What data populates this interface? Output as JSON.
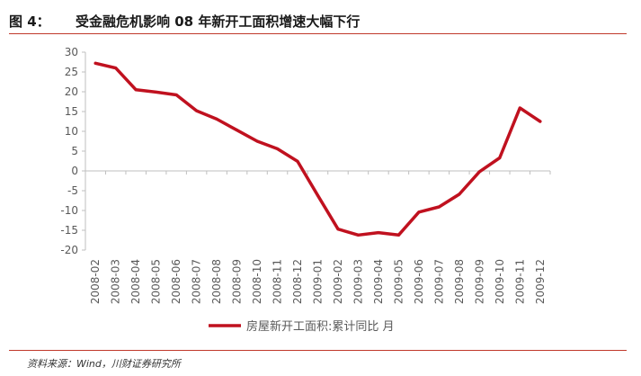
{
  "figure": {
    "label": "图 4：",
    "title": "受金融危机影响 08 年新开工面积增速大幅下行",
    "source": "资料来源：Wind，川财证券研究所"
  },
  "colors": {
    "series": "#c0111f",
    "axis": "#bfbfbf",
    "text": "#595959",
    "rule": "#c0392b"
  },
  "chart_data": {
    "type": "line",
    "categories": [
      "2008-02",
      "2008-03",
      "2008-04",
      "2008-05",
      "2008-06",
      "2008-07",
      "2008-08",
      "2008-09",
      "2008-10",
      "2008-11",
      "2008-12",
      "2009-01",
      "2009-02",
      "2009-03",
      "2009-04",
      "2009-05",
      "2009-06",
      "2009-07",
      "2009-08",
      "2009-09",
      "2009-10",
      "2009-11",
      "2009-12"
    ],
    "series": [
      {
        "name": "房屋新开工面积:累计同比 月",
        "values": [
          27.2,
          26.0,
          20.5,
          19.9,
          19.2,
          15.2,
          13.1,
          10.3,
          7.5,
          5.6,
          2.4,
          -6.2,
          -14.7,
          -16.2,
          -15.6,
          -16.2,
          -10.4,
          -9.1,
          -5.9,
          -0.2,
          3.3,
          15.9,
          12.5
        ]
      }
    ],
    "ylim": [
      -20,
      30
    ],
    "yticks": [
      -20,
      -15,
      -10,
      -5,
      0,
      5,
      10,
      15,
      20,
      25,
      30
    ],
    "grid": false,
    "legend": "bottom"
  }
}
